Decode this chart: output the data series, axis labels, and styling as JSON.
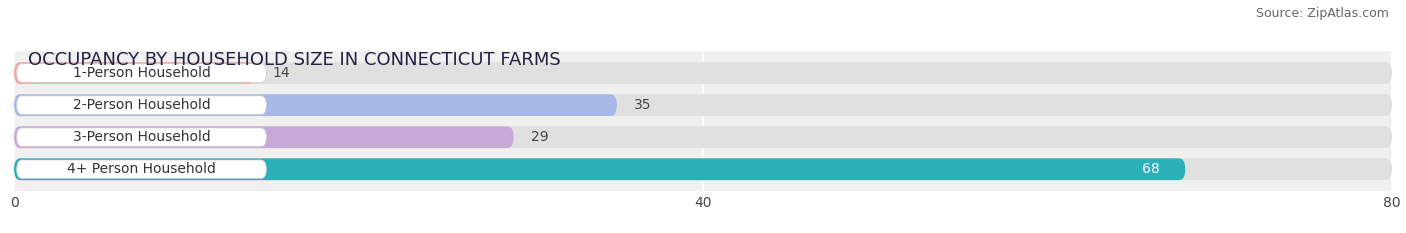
{
  "title": "OCCUPANCY BY HOUSEHOLD SIZE IN CONNECTICUT FARMS",
  "source": "Source: ZipAtlas.com",
  "categories": [
    "1-Person Household",
    "2-Person Household",
    "3-Person Household",
    "4+ Person Household"
  ],
  "values": [
    14,
    35,
    29,
    68
  ],
  "bar_colors": [
    "#f0a8a8",
    "#a8b8e8",
    "#c8a8d8",
    "#2ab0b8"
  ],
  "xlim": [
    0,
    80
  ],
  "xticks": [
    0,
    40,
    80
  ],
  "background_color": "#f0f0f0",
  "bar_background_color": "#e0e0e0",
  "title_fontsize": 13,
  "source_fontsize": 9,
  "tick_fontsize": 10,
  "label_fontsize": 10,
  "value_fontsize": 10,
  "bar_height": 0.68,
  "figure_width": 14.06,
  "figure_height": 2.33
}
